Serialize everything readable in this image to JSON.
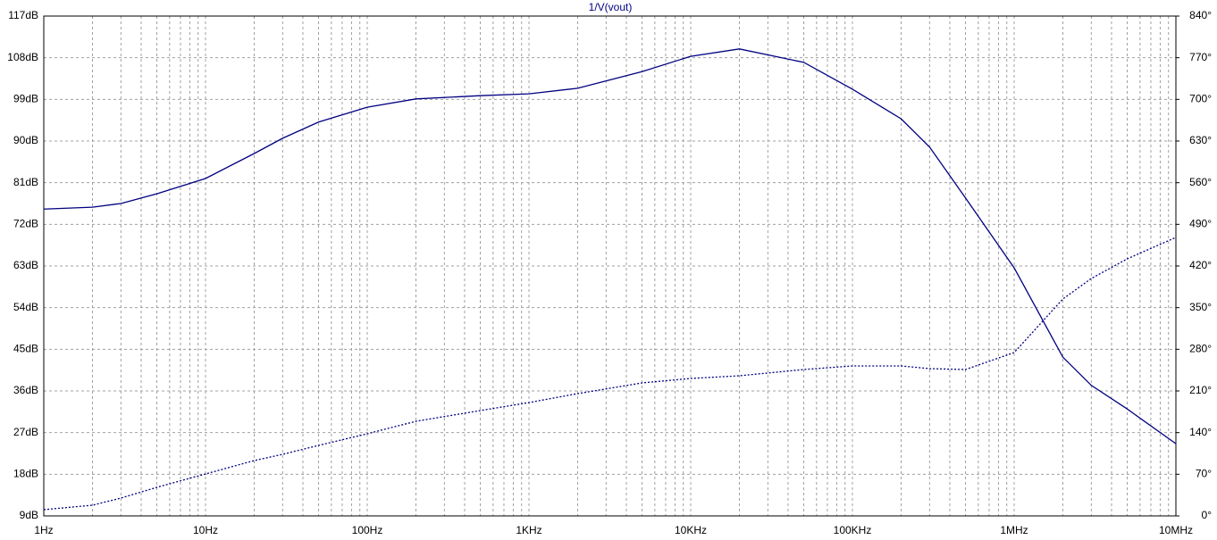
{
  "chart_data": {
    "type": "line",
    "title": "1/V(vout)",
    "x": [
      1,
      2,
      3,
      5,
      10,
      20,
      30,
      50,
      100,
      200,
      500,
      1000,
      2000,
      5000,
      10000,
      20000,
      50000,
      100000,
      200000,
      300000,
      500000,
      1000000,
      2000000,
      3000000,
      5000000,
      10000000
    ],
    "series": [
      {
        "color": "#000080",
        "line_style": "solid",
        "axis": "y",
        "values": [
          75.3,
          75.7,
          76.5,
          78.6,
          81.9,
          87.3,
          90.6,
          94.1,
          97.3,
          99.1,
          99.8,
          100.2,
          101.4,
          105,
          108.3,
          109.9,
          107,
          101.2,
          94.8,
          88.7,
          77.7,
          62.6,
          43.3,
          37.2,
          32.1,
          24.6
        ]
      },
      {
        "color": "#000080",
        "line_style": "dashed",
        "axis": "y2",
        "values": [
          10.5,
          18,
          30,
          48,
          70.5,
          93,
          103.5,
          118.5,
          138,
          159,
          177,
          190.5,
          205.5,
          223.5,
          231,
          235.5,
          246,
          252,
          252,
          247.5,
          246,
          274.5,
          364.5,
          399,
          432,
          468
        ]
      }
    ],
    "xscale": "log",
    "xlim": [
      1,
      10000000
    ],
    "xticks": [
      {
        "value": 1,
        "label": "1Hz"
      },
      {
        "value": 10,
        "label": "10Hz"
      },
      {
        "value": 100,
        "label": "100Hz"
      },
      {
        "value": 1000,
        "label": "1KHz"
      },
      {
        "value": 10000,
        "label": "10KHz"
      },
      {
        "value": 100000,
        "label": "100KHz"
      },
      {
        "value": 1000000,
        "label": "1MHz"
      },
      {
        "value": 10000000,
        "label": "10MHz"
      }
    ],
    "ylim": [
      9,
      117
    ],
    "yticks": [
      {
        "value": 9,
        "label": "9dB"
      },
      {
        "value": 18,
        "label": "18dB"
      },
      {
        "value": 27,
        "label": "27dB"
      },
      {
        "value": 36,
        "label": "36dB"
      },
      {
        "value": 45,
        "label": "45dB"
      },
      {
        "value": 54,
        "label": "54dB"
      },
      {
        "value": 63,
        "label": "63dB"
      },
      {
        "value": 72,
        "label": "72dB"
      },
      {
        "value": 81,
        "label": "81dB"
      },
      {
        "value": 90,
        "label": "90dB"
      },
      {
        "value": 99,
        "label": "99dB"
      },
      {
        "value": 108,
        "label": "108dB"
      },
      {
        "value": 117,
        "label": "117dB"
      }
    ],
    "y2lim": [
      0,
      840
    ],
    "y2ticks": [
      {
        "value": 0,
        "label": "0°"
      },
      {
        "value": 70,
        "label": "70°"
      },
      {
        "value": 140,
        "label": "140°"
      },
      {
        "value": 210,
        "label": "210°"
      },
      {
        "value": 280,
        "label": "280°"
      },
      {
        "value": 350,
        "label": "350°"
      },
      {
        "value": 420,
        "label": "420°"
      },
      {
        "value": 490,
        "label": "490°"
      },
      {
        "value": 560,
        "label": "560°"
      },
      {
        "value": 630,
        "label": "630°"
      },
      {
        "value": 700,
        "label": "700°"
      },
      {
        "value": 770,
        "label": "770°"
      },
      {
        "value": 840,
        "label": "840°"
      }
    ],
    "grid": true
  }
}
